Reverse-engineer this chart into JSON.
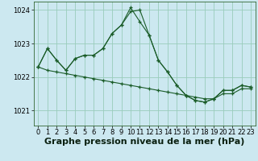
{
  "title": "Graphe pression niveau de la mer (hPa)",
  "background_color": "#cce8f0",
  "grid_color": "#99ccbb",
  "line_color": "#1a5c28",
  "xlim_min": -0.5,
  "xlim_max": 23.5,
  "ylim_min": 1020.55,
  "ylim_max": 1024.25,
  "yticks": [
    1021,
    1022,
    1023,
    1024
  ],
  "xticks": [
    0,
    1,
    2,
    3,
    4,
    5,
    6,
    7,
    8,
    9,
    10,
    11,
    12,
    13,
    14,
    15,
    16,
    17,
    18,
    19,
    20,
    21,
    22,
    23
  ],
  "series1_x": [
    0,
    1,
    2,
    3,
    4,
    5,
    6,
    7,
    8,
    9,
    10,
    11,
    12,
    13,
    14,
    15,
    16,
    17,
    18,
    19,
    20,
    21,
    22,
    23
  ],
  "series1_y": [
    1022.3,
    1022.85,
    1022.5,
    1022.2,
    1022.55,
    1022.65,
    1022.65,
    1022.85,
    1023.3,
    1023.55,
    1023.95,
    1024.0,
    1023.25,
    1022.5,
    1022.15,
    1021.75,
    1021.45,
    1021.3,
    1021.25,
    1021.35,
    1021.6,
    1021.6,
    1021.75,
    1021.7
  ],
  "series2_x": [
    0,
    1,
    2,
    3,
    4,
    5,
    6,
    7,
    8,
    9,
    10,
    11,
    12,
    13,
    14,
    15,
    16,
    17,
    18,
    19,
    20,
    21,
    22,
    23
  ],
  "series2_y": [
    1022.3,
    1022.85,
    1022.5,
    1022.2,
    1022.55,
    1022.65,
    1022.65,
    1022.85,
    1023.3,
    1023.55,
    1024.07,
    1023.65,
    1023.25,
    1022.5,
    1022.15,
    1021.75,
    1021.45,
    1021.3,
    1021.25,
    1021.35,
    1021.6,
    1021.6,
    1021.75,
    1021.7
  ],
  "series3_x": [
    0,
    1,
    2,
    3,
    4,
    5,
    6,
    7,
    8,
    9,
    10,
    11,
    12,
    13,
    14,
    15,
    16,
    17,
    18,
    19,
    20,
    21,
    22,
    23
  ],
  "series3_y": [
    1022.3,
    1022.2,
    1022.15,
    1022.1,
    1022.05,
    1022.0,
    1021.95,
    1021.9,
    1021.85,
    1021.8,
    1021.75,
    1021.7,
    1021.65,
    1021.6,
    1021.55,
    1021.5,
    1021.45,
    1021.4,
    1021.35,
    1021.35,
    1021.5,
    1021.5,
    1021.65,
    1021.65
  ],
  "title_fontsize": 8,
  "tick_fontsize": 6
}
